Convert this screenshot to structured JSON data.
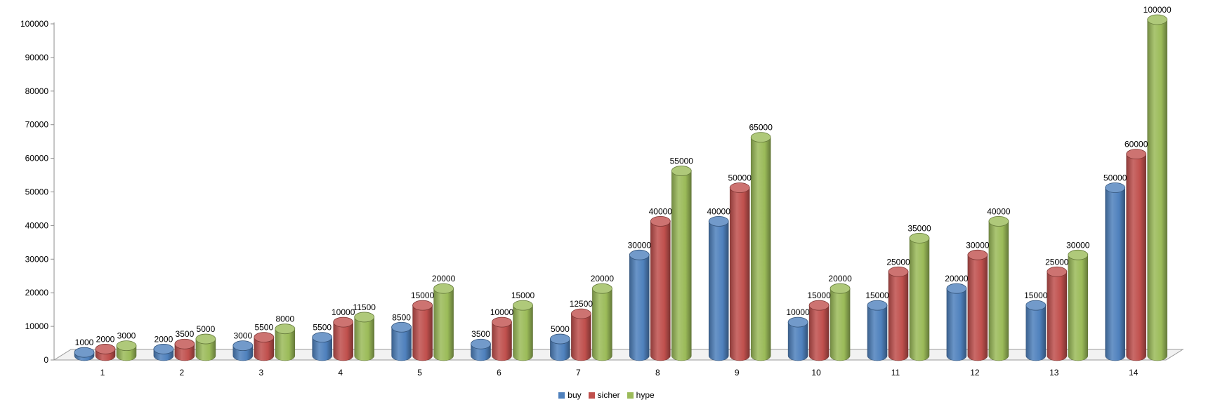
{
  "chart_data": {
    "type": "bar",
    "categories": [
      "1",
      "2",
      "3",
      "4",
      "5",
      "6",
      "7",
      "8",
      "9",
      "10",
      "11",
      "12",
      "13",
      "14"
    ],
    "series": [
      {
        "name": "buy",
        "color": "#4F81BD",
        "values": [
          1000,
          2000,
          3000,
          5500,
          8500,
          3500,
          5000,
          30000,
          40000,
          10000,
          15000,
          20000,
          15000,
          50000
        ]
      },
      {
        "name": "sicher",
        "color": "#C0504D",
        "values": [
          2000,
          3500,
          5500,
          10000,
          15000,
          10000,
          12500,
          40000,
          50000,
          15000,
          25000,
          30000,
          25000,
          60000
        ]
      },
      {
        "name": "hype",
        "color": "#9BBB59",
        "values": [
          3000,
          5000,
          8000,
          11500,
          20000,
          15000,
          20000,
          55000,
          65000,
          20000,
          35000,
          40000,
          30000,
          100000
        ]
      }
    ],
    "yticks": [
      "0",
      "10000",
      "20000",
      "30000",
      "40000",
      "50000",
      "60000",
      "70000",
      "80000",
      "90000",
      "100000"
    ],
    "ylim": [
      0,
      100000
    ],
    "data_labels": true,
    "style": "3d-cylinder",
    "legend_position": "bottom",
    "grid": false
  }
}
